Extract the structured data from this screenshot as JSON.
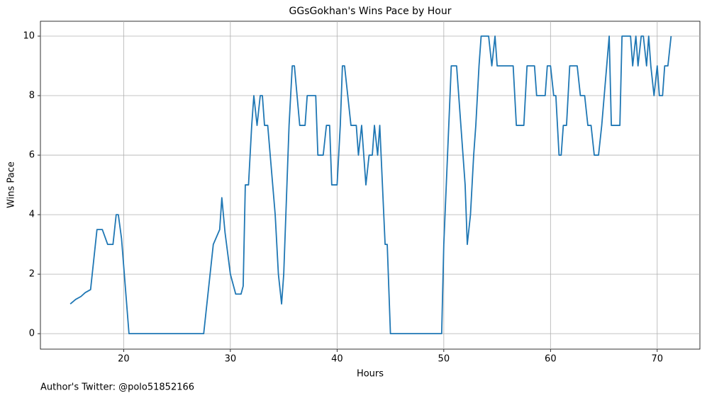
{
  "chart_data": {
    "type": "line",
    "title": "GGsGokhan's Wins Pace by Hour",
    "xlabel": "Hours",
    "ylabel": "Wins Pace",
    "footnote": "Author's Twitter: @polo51852166",
    "xlim": [
      12.2,
      74.0
    ],
    "ylim": [
      -0.52,
      10.5
    ],
    "xticks": [
      20,
      30,
      40,
      50,
      60,
      70
    ],
    "yticks": [
      0,
      2,
      4,
      6,
      8,
      10
    ],
    "grid": true,
    "x": [
      15.0,
      15.5,
      16.0,
      16.4,
      16.9,
      17.5,
      18.0,
      18.5,
      19.0,
      19.3,
      19.5,
      19.8,
      20.5,
      27.5,
      28.4,
      29.0,
      29.2,
      29.5,
      30.0,
      30.5,
      31.0,
      31.2,
      31.4,
      31.7,
      32.0,
      32.2,
      32.5,
      32.8,
      33.0,
      33.2,
      33.5,
      34.2,
      34.5,
      34.8,
      35.0,
      35.2,
      35.5,
      35.8,
      36.0,
      36.5,
      37.0,
      37.2,
      38.0,
      38.2,
      38.7,
      39.0,
      39.3,
      39.5,
      40.0,
      40.3,
      40.5,
      40.7,
      41.0,
      41.3,
      41.8,
      42.0,
      42.3,
      42.5,
      42.7,
      43.0,
      43.3,
      43.5,
      43.8,
      44.0,
      44.5,
      44.7,
      45.0,
      49.8,
      50.0,
      50.7,
      51.2,
      51.4,
      51.8,
      52.0,
      52.2,
      52.5,
      52.8,
      53.0,
      53.3,
      53.5,
      54.2,
      54.5,
      54.8,
      55.0,
      56.5,
      56.8,
      57.5,
      57.8,
      58.5,
      58.7,
      59.5,
      59.7,
      60.0,
      60.3,
      60.5,
      60.8,
      61.0,
      61.2,
      61.5,
      61.8,
      62.5,
      62.8,
      63.2,
      63.5,
      63.8,
      64.1,
      64.5,
      64.8,
      65.5,
      65.7,
      66.5,
      66.7,
      67.5,
      67.7,
      68.0,
      68.2,
      68.5,
      68.7,
      69.0,
      69.2,
      69.4,
      69.7,
      70.0,
      70.2,
      70.5,
      70.7,
      71.0,
      71.3
    ],
    "series": [
      {
        "name": "Wins Pace",
        "color": "#1f77b4",
        "values": [
          1.0,
          1.15,
          1.25,
          1.38,
          1.48,
          3.5,
          3.5,
          3.0,
          3.0,
          4.0,
          4.0,
          3.2,
          0,
          0,
          3.0,
          3.5,
          4.57,
          3.4,
          2.0,
          1.33,
          1.33,
          1.6,
          5,
          5,
          7,
          8,
          7,
          8,
          8,
          7,
          7,
          4,
          2,
          1,
          2,
          4,
          7,
          9,
          9,
          7,
          7,
          8,
          8,
          6,
          6,
          7,
          7,
          5,
          5,
          7,
          9,
          9,
          8,
          7,
          7,
          6,
          7,
          6,
          5,
          6,
          6,
          7,
          6,
          7,
          3,
          3,
          0,
          0,
          3,
          9,
          9,
          8,
          6,
          5,
          3,
          4,
          6,
          7,
          9,
          10,
          10,
          9,
          10,
          9,
          9,
          7,
          7,
          9,
          9,
          8,
          8,
          9,
          9,
          8,
          8,
          6,
          6,
          7,
          7,
          9,
          9,
          8,
          8,
          7,
          7,
          6,
          6,
          7,
          10,
          7,
          7,
          10,
          10,
          9,
          10,
          9,
          10,
          10,
          9,
          10,
          9,
          8,
          9,
          8,
          8,
          9,
          9,
          10
        ]
      }
    ]
  }
}
